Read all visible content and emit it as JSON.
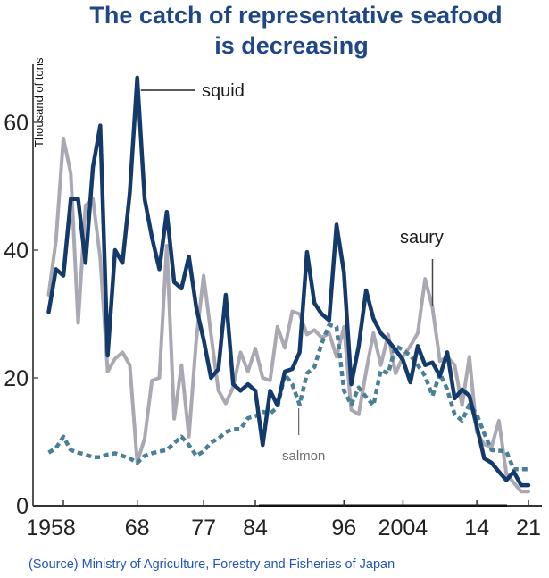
{
  "title": {
    "line1": "The catch of representative seafood",
    "line2": "is decreasing"
  },
  "source": "(Source) Ministry of Agriculture, Forestry and Fisheries of Japan",
  "chart_data": {
    "type": "line",
    "title": "The catch of representative seafood is decreasing",
    "xlabel": "",
    "ylabel": "Thousand of tons",
    "xlim": [
      1956,
      2021
    ],
    "ylim": [
      0,
      70
    ],
    "y_ticks": [
      0,
      20,
      40,
      60
    ],
    "x_ticks": [
      {
        "year": 1958,
        "label": "1958"
      },
      {
        "year": 1968,
        "label": "68"
      },
      {
        "year": 1977,
        "label": "77"
      },
      {
        "year": 1984,
        "label": "84"
      },
      {
        "year": 1996,
        "label": "96"
      },
      {
        "year": 2004,
        "label": "2004"
      },
      {
        "year": 2014,
        "label": "14"
      },
      {
        "year": 2021,
        "label": "21"
      }
    ],
    "grid": false,
    "legend": "inline-labels",
    "x": [
      1956,
      1957,
      1958,
      1959,
      1960,
      1961,
      1962,
      1963,
      1964,
      1965,
      1966,
      1967,
      1968,
      1969,
      1970,
      1971,
      1972,
      1973,
      1974,
      1975,
      1976,
      1977,
      1978,
      1979,
      1980,
      1981,
      1982,
      1983,
      1984,
      1985,
      1986,
      1987,
      1988,
      1989,
      1990,
      1991,
      1992,
      1993,
      1994,
      1995,
      1996,
      1997,
      1998,
      1999,
      2000,
      2001,
      2002,
      2003,
      2004,
      2005,
      2006,
      2007,
      2008,
      2009,
      2010,
      2011,
      2012,
      2013,
      2014,
      2015,
      2016,
      2017,
      2018,
      2019,
      2020,
      2021
    ],
    "series": [
      {
        "name": "squid",
        "color": "#133a6b",
        "style": "solid",
        "values": [
          30.3,
          37,
          36,
          48,
          48,
          38,
          53,
          59.5,
          23.5,
          40,
          38,
          49,
          67,
          48,
          42,
          37,
          46,
          35,
          34,
          39,
          31,
          26,
          20,
          21.4,
          33,
          19,
          18,
          19,
          18,
          9.5,
          18,
          15.7,
          21,
          21.4,
          24,
          39.7,
          31.7,
          30,
          29,
          44,
          36.5,
          19,
          25,
          33.7,
          29.3,
          27,
          25.8,
          24.4,
          22.8,
          19.3,
          25,
          22,
          22.4,
          20.3,
          24,
          16.8,
          18.2,
          17.2,
          12.4,
          7.4,
          6.7,
          5.3,
          4,
          5.3,
          3.2,
          3.2
        ]
      },
      {
        "name": "saury",
        "color": "#a9a8b3",
        "style": "solid",
        "values": [
          33,
          41.5,
          57.5,
          52,
          28.6,
          47,
          48,
          38.7,
          21,
          23,
          24,
          22,
          6.8,
          10.5,
          19.6,
          20,
          40.7,
          13.6,
          22,
          10.8,
          26,
          36,
          26.8,
          18,
          16,
          18.6,
          24,
          21,
          24.6,
          20,
          19.6,
          28,
          24.7,
          30.4,
          30,
          26.8,
          27.5,
          26.3,
          27,
          23.3,
          28,
          15,
          14.3,
          21,
          27,
          22,
          26.8,
          20.7,
          23.3,
          25,
          27,
          35.5,
          31,
          22.6,
          23.3,
          22,
          15.7,
          23.3,
          11.5,
          9.6,
          9.2,
          13.3,
          5,
          3.6,
          2.2,
          2.2
        ]
      },
      {
        "name": "salmon",
        "color": "#4a7f96",
        "style": "dotted",
        "values": [
          8.3,
          9,
          10.8,
          8.7,
          8.3,
          8,
          7.6,
          7.6,
          8,
          8.2,
          7.8,
          7.4,
          6.7,
          7.8,
          8.2,
          8.5,
          8.7,
          9.8,
          10.8,
          9.5,
          7.8,
          8.5,
          9.9,
          10.5,
          11.5,
          12,
          12,
          13.7,
          14,
          14.7,
          14.4,
          15.4,
          20.5,
          19,
          15.8,
          20.7,
          21.7,
          25.4,
          28.3,
          28,
          18,
          15.8,
          18.5,
          17,
          15.7,
          21.2,
          20.7,
          25,
          24.4,
          23.5,
          22,
          20.3,
          17.2,
          20.7,
          18.2,
          14.3,
          13.3,
          15.8,
          14.3,
          11.3,
          8.7,
          8.6,
          8.5,
          5.7,
          5.7,
          5.7
        ]
      }
    ],
    "annotations": [
      {
        "text": "squid",
        "series": "squid",
        "year": 1968
      },
      {
        "text": "saury",
        "series": "saury",
        "year": 2008
      },
      {
        "text": "salmon",
        "series": "salmon",
        "year": 1990
      }
    ]
  }
}
